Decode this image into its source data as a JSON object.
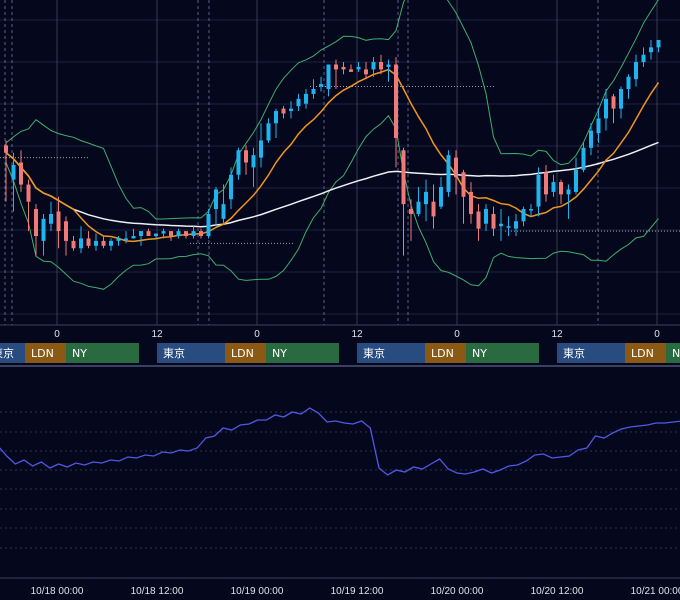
{
  "colors": {
    "background": "#05071c",
    "grid": "#1d2240",
    "grid_dotted": "#2c3452",
    "vline": "#5a6280",
    "candle_up": "#1eb4f0",
    "candle_down": "#f07a78",
    "bollinger": "#3fae6c",
    "ma_orange": "#f0961e",
    "ma_white": "#eef0f4",
    "indicator_line": "#5058e6",
    "session_tokyo": "#284b80",
    "session_london": "#8a5a14",
    "session_ny": "#2a6a40",
    "level_line": "#9aa0b4"
  },
  "session_labels": {
    "tokyo": "東京",
    "london": "LDN",
    "ny": "NY"
  },
  "chart_data": [
    {
      "type": "candlestick",
      "title": "",
      "indicators": [
        "bollinger-bands",
        "moving-average",
        "moving-average"
      ],
      "y_range": [
        0,
        100
      ],
      "hour_axis_ticks": [
        "0",
        "12",
        "0",
        "12",
        "0",
        "12",
        "0"
      ],
      "grid": true,
      "candles": [
        {
          "o": 57,
          "c": 54,
          "h": 59,
          "l": 34
        },
        {
          "o": 43,
          "c": 49,
          "h": 54,
          "l": 30
        },
        {
          "o": 50,
          "c": 41,
          "h": 55,
          "l": 38
        },
        {
          "o": 41,
          "c": 34,
          "h": 43,
          "l": 22
        },
        {
          "o": 31,
          "c": 20,
          "h": 33,
          "l": 12
        },
        {
          "o": 18,
          "c": 27,
          "h": 29,
          "l": 12
        },
        {
          "o": 25,
          "c": 29,
          "h": 34,
          "l": 22
        },
        {
          "o": 30,
          "c": 22,
          "h": 36,
          "l": 15
        },
        {
          "o": 26,
          "c": 18,
          "h": 28,
          "l": 12
        },
        {
          "o": 18,
          "c": 15,
          "h": 20,
          "l": 14
        },
        {
          "o": 15,
          "c": 19,
          "h": 24,
          "l": 13
        },
        {
          "o": 19,
          "c": 16,
          "h": 22,
          "l": 15
        },
        {
          "o": 16,
          "c": 18,
          "h": 21,
          "l": 14
        },
        {
          "o": 18,
          "c": 16,
          "h": 20,
          "l": 15
        },
        {
          "o": 16,
          "c": 18,
          "h": 19,
          "l": 14
        },
        {
          "o": 18,
          "c": 19,
          "h": 20,
          "l": 16
        },
        {
          "o": 19,
          "c": 19,
          "h": 22,
          "l": 17
        },
        {
          "o": 19,
          "c": 20,
          "h": 23,
          "l": 19
        },
        {
          "o": 20,
          "c": 22,
          "h": 22,
          "l": 16
        },
        {
          "o": 22,
          "c": 20,
          "h": 23,
          "l": 20
        },
        {
          "o": 20,
          "c": 21,
          "h": 21,
          "l": 19
        },
        {
          "o": 21,
          "c": 22,
          "h": 23,
          "l": 19
        },
        {
          "o": 22,
          "c": 20,
          "h": 22,
          "l": 18
        },
        {
          "o": 20,
          "c": 22,
          "h": 23,
          "l": 19
        },
        {
          "o": 22,
          "c": 20,
          "h": 22,
          "l": 19
        },
        {
          "o": 20,
          "c": 22,
          "h": 24,
          "l": 19
        },
        {
          "o": 22,
          "c": 20,
          "h": 23,
          "l": 19
        },
        {
          "o": 20,
          "c": 29,
          "h": 31,
          "l": 19
        },
        {
          "o": 31,
          "c": 39,
          "h": 40,
          "l": 24
        },
        {
          "o": 27,
          "c": 33,
          "h": 41,
          "l": 25
        },
        {
          "o": 35,
          "c": 45,
          "h": 48,
          "l": 31
        },
        {
          "o": 45,
          "c": 55,
          "h": 56,
          "l": 43
        },
        {
          "o": 55,
          "c": 50,
          "h": 57,
          "l": 45
        },
        {
          "o": 48,
          "c": 53,
          "h": 56,
          "l": 40
        },
        {
          "o": 52,
          "c": 59,
          "h": 66,
          "l": 48
        },
        {
          "o": 59,
          "c": 66,
          "h": 68,
          "l": 58
        },
        {
          "o": 66,
          "c": 71,
          "h": 72,
          "l": 60
        },
        {
          "o": 72,
          "c": 70,
          "h": 73,
          "l": 68
        },
        {
          "o": 71,
          "c": 72,
          "h": 75,
          "l": 68
        },
        {
          "o": 73,
          "c": 76,
          "h": 78,
          "l": 71
        },
        {
          "o": 74,
          "c": 78,
          "h": 80,
          "l": 72
        },
        {
          "o": 78,
          "c": 80,
          "h": 84,
          "l": 76
        },
        {
          "o": 81,
          "c": 82,
          "h": 85,
          "l": 79
        },
        {
          "o": 80,
          "c": 90,
          "h": 90,
          "l": 77
        },
        {
          "o": 90,
          "c": 88,
          "h": 92,
          "l": 80
        },
        {
          "o": 89,
          "c": 88,
          "h": 91,
          "l": 86
        },
        {
          "o": 88,
          "c": 87,
          "h": 90,
          "l": 87
        },
        {
          "o": 88,
          "c": 89,
          "h": 91,
          "l": 87
        },
        {
          "o": 88,
          "c": 86,
          "h": 91,
          "l": 84
        },
        {
          "o": 88,
          "c": 91,
          "h": 93,
          "l": 85
        },
        {
          "o": 91,
          "c": 88,
          "h": 94,
          "l": 86
        },
        {
          "o": 89,
          "c": 90,
          "h": 92,
          "l": 83
        },
        {
          "o": 90,
          "c": 60,
          "h": 93,
          "l": 48
        },
        {
          "o": 55,
          "c": 33,
          "h": 56,
          "l": 12
        },
        {
          "o": 31,
          "c": 29,
          "h": 35,
          "l": 18
        },
        {
          "o": 29,
          "c": 34,
          "h": 40,
          "l": 28
        },
        {
          "o": 33,
          "c": 38,
          "h": 43,
          "l": 26
        },
        {
          "o": 34,
          "c": 28,
          "h": 41,
          "l": 23
        },
        {
          "o": 32,
          "c": 40,
          "h": 44,
          "l": 31
        },
        {
          "o": 38,
          "c": 53,
          "h": 55,
          "l": 36
        },
        {
          "o": 52,
          "c": 44,
          "h": 55,
          "l": 37
        },
        {
          "o": 46,
          "c": 36,
          "h": 47,
          "l": 25
        },
        {
          "o": 38,
          "c": 29,
          "h": 42,
          "l": 25
        },
        {
          "o": 30,
          "c": 23,
          "h": 33,
          "l": 18
        },
        {
          "o": 25,
          "c": 31,
          "h": 33,
          "l": 22
        },
        {
          "o": 29,
          "c": 23,
          "h": 32,
          "l": 20
        },
        {
          "o": 24,
          "c": 25,
          "h": 31,
          "l": 18
        },
        {
          "o": 24,
          "c": 24,
          "h": 28,
          "l": 20
        },
        {
          "o": 23,
          "c": 26,
          "h": 29,
          "l": 20
        },
        {
          "o": 26,
          "c": 31,
          "h": 32,
          "l": 24
        },
        {
          "o": 31,
          "c": 31,
          "h": 33,
          "l": 28
        },
        {
          "o": 32,
          "c": 45,
          "h": 48,
          "l": 28
        },
        {
          "o": 46,
          "c": 37,
          "h": 49,
          "l": 34
        },
        {
          "o": 38,
          "c": 42,
          "h": 45,
          "l": 36
        },
        {
          "o": 42,
          "c": 37,
          "h": 43,
          "l": 33
        },
        {
          "o": 37,
          "c": 39,
          "h": 41,
          "l": 27
        },
        {
          "o": 38,
          "c": 47,
          "h": 52,
          "l": 37
        },
        {
          "o": 47,
          "c": 56,
          "h": 58,
          "l": 46
        },
        {
          "o": 56,
          "c": 63,
          "h": 66,
          "l": 53
        },
        {
          "o": 62,
          "c": 68,
          "h": 72,
          "l": 58
        },
        {
          "o": 68,
          "c": 76,
          "h": 80,
          "l": 63
        },
        {
          "o": 77,
          "c": 72,
          "h": 78,
          "l": 66
        },
        {
          "o": 72,
          "c": 80,
          "h": 81,
          "l": 68
        },
        {
          "o": 80,
          "c": 85,
          "h": 86,
          "l": 76
        },
        {
          "o": 84,
          "c": 91,
          "h": 94,
          "l": 81
        },
        {
          "o": 91,
          "c": 94,
          "h": 97,
          "l": 89
        },
        {
          "o": 95,
          "c": 97,
          "h": 100,
          "l": 92
        },
        {
          "o": 97,
          "c": 100,
          "h": 100,
          "l": 95
        }
      ],
      "horizontal_levels": [
        {
          "value": 52,
          "x_from": 0,
          "x_to": 90
        },
        {
          "value": 17,
          "x_from": 190,
          "x_to": 295
        },
        {
          "value": 81,
          "x_from": 310,
          "x_to": 495
        },
        {
          "value": 22,
          "x_from": 505,
          "x_to": 680
        }
      ]
    },
    {
      "type": "line",
      "title": "",
      "y_range": [
        0,
        100
      ],
      "x_tick_labels": [
        "10/18 00:00",
        "10/18 12:00",
        "10/19 00:00",
        "10/19 12:00",
        "10/20 00:00",
        "10/20 12:00",
        "10/21 00:00"
      ],
      "grid": true,
      "values": [
        62,
        52,
        44,
        48,
        42,
        46,
        40,
        44,
        41,
        45,
        43,
        46,
        45,
        48,
        47,
        51,
        50,
        53,
        52,
        56,
        55,
        58,
        57,
        60,
        70,
        72,
        80,
        78,
        83,
        84,
        88,
        88,
        93,
        91,
        96,
        94,
        100,
        95,
        86,
        87,
        85,
        84,
        87,
        80,
        40,
        33,
        38,
        36,
        41,
        39,
        44,
        49,
        39,
        35,
        34,
        36,
        39,
        35,
        38,
        42,
        43,
        47,
        53,
        54,
        50,
        51,
        52,
        58,
        60,
        72,
        70,
        75,
        79,
        81,
        82,
        83,
        85,
        85,
        86,
        87
      ]
    }
  ]
}
